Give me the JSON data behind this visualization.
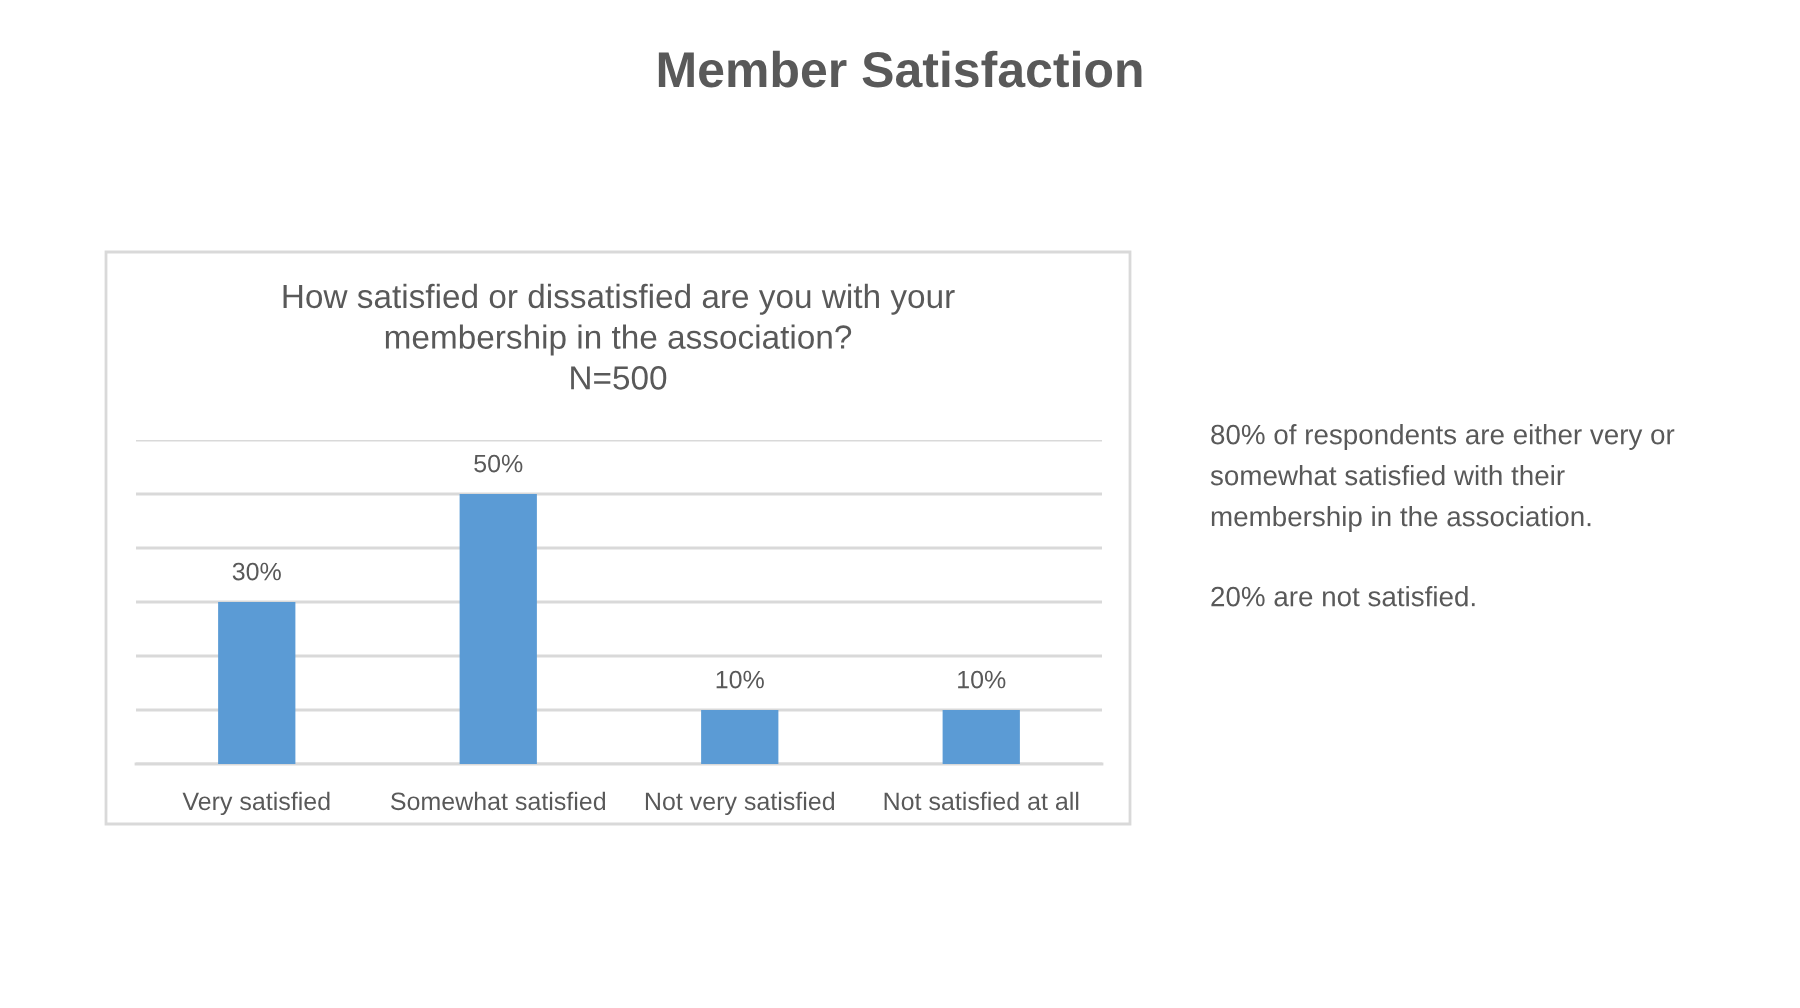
{
  "chart_data": {
    "type": "bar",
    "title": "Member Satisfaction",
    "subtitle": "How satisfied or dissatisfied are you with your\nmembership in the association?\nN=500",
    "categories": [
      "Very satisfied",
      "Somewhat satisfied",
      "Not very satisfied",
      "Not satisfied at all"
    ],
    "values": [
      30,
      50,
      10,
      10
    ],
    "color": "#5b9bd5",
    "value_labels": [
      "30%",
      "50%",
      "10%",
      "10%"
    ],
    "ylim": [
      0,
      60
    ],
    "yticks": [
      {
        "value": 0,
        "label": null
      },
      {
        "value": 10,
        "label": null
      },
      {
        "value": 20,
        "label": null
      },
      {
        "value": 30,
        "label": null
      },
      {
        "value": 40,
        "label": null
      },
      {
        "value": 50,
        "label": null
      },
      {
        "value": 60,
        "label": null
      }
    ],
    "grid": "y",
    "tick_labels": "x",
    "annotations": [
      "80% of respondents are either very or\nsomewhat satisfied with their\nmembership in the association.",
      "20% are not satisfied."
    ]
  }
}
